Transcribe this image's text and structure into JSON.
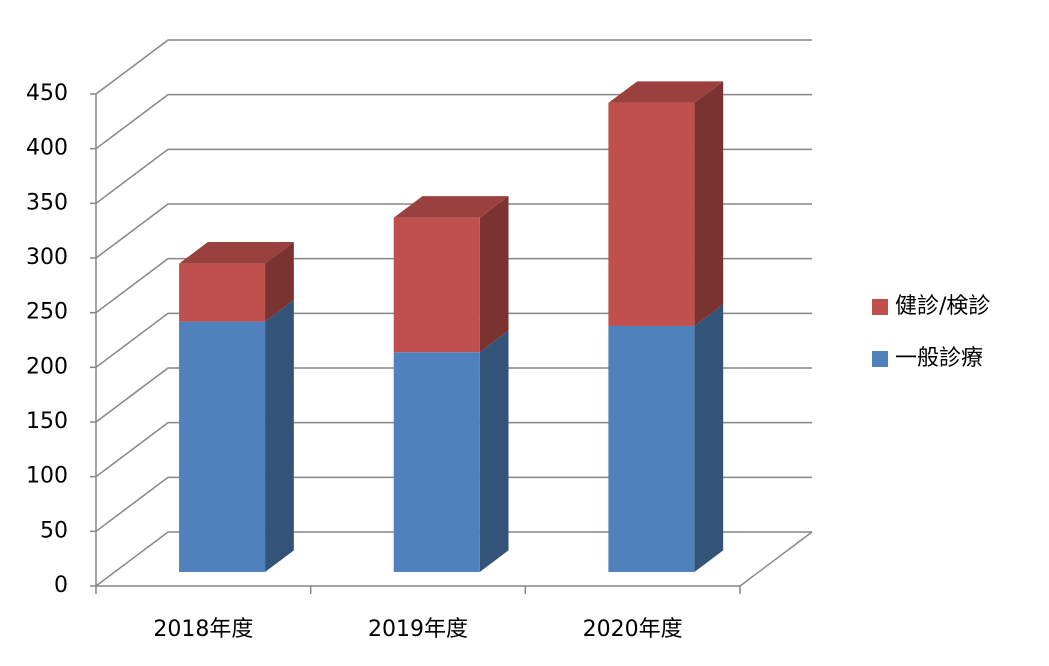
{
  "chart_data": {
    "type": "bar3d_stacked",
    "categories": [
      "2018年度",
      "2019年度",
      "2020年度"
    ],
    "series": [
      {
        "name": "一般診療",
        "color": "#4f81bd",
        "values": [
          229,
          201,
          225
        ]
      },
      {
        "name": "健診/検診",
        "color": "#c0504d",
        "values": [
          53,
          123,
          204
        ]
      }
    ],
    "ylim": [
      0,
      450
    ],
    "yticks": [
      0,
      50,
      100,
      150,
      200,
      250,
      300,
      350,
      400,
      450
    ],
    "grid": true,
    "legend": "right"
  }
}
